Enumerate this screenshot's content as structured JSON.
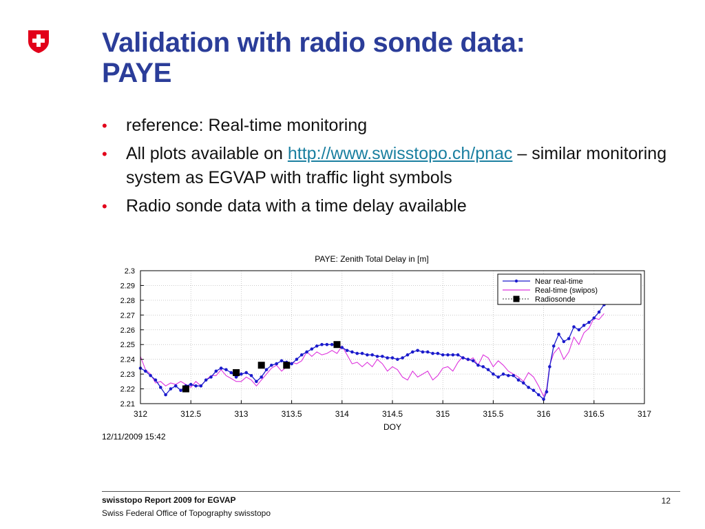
{
  "slide": {
    "title_line1": "Validation with radio sonde data:",
    "title_line2": "PAYE",
    "bullets": {
      "b1": "reference: Real-time monitoring",
      "b2_pre": "All plots available on ",
      "b2_link": "http://www.swisstopo.ch/pnac",
      "b2_post": " – similar monitoring system as EGVAP with traffic light symbols",
      "b3": "Radio sonde data with a time delay available"
    },
    "bullet_glyph": "•",
    "footer": {
      "report": "swisstopo Report 2009 for EGVAP",
      "org": "Swiss Federal Office of Topography swisstopo",
      "page": "12"
    },
    "logo_icon": "swiss-cross-shield"
  },
  "colors": {
    "title": "#2b3d99",
    "bullet": "#e2001a",
    "link": "#1a7fa0",
    "near_real_time": "#1a1acc",
    "real_time": "#dd33dd",
    "radiosonde": "#000000"
  },
  "chart_data": {
    "type": "line",
    "title": "PAYE: Zenith Total Delay in [m]",
    "xlabel": "DOY",
    "ylabel": "",
    "timestamp": "12/11/2009 15:42",
    "xlim": [
      312,
      317
    ],
    "ylim": [
      2.21,
      2.3
    ],
    "xticks": [
      312,
      312.5,
      313,
      313.5,
      314,
      314.5,
      315,
      315.5,
      316,
      316.5,
      317
    ],
    "yticks": [
      2.21,
      2.22,
      2.23,
      2.24,
      2.25,
      2.26,
      2.27,
      2.28,
      2.29,
      2.3
    ],
    "xtick_labels": [
      "312",
      "312.5",
      "313",
      "313.5",
      "314",
      "314.5",
      "315",
      "315.5",
      "316",
      "316.5",
      "317"
    ],
    "ytick_labels": [
      "2.21",
      "2.22",
      "2.23",
      "2.24",
      "2.25",
      "2.26",
      "2.27",
      "2.28",
      "2.29",
      "2.3"
    ],
    "grid": true,
    "legend_position": "top-right",
    "series": [
      {
        "name": "Near real-time",
        "style": "line-dot",
        "x": [
          312.0,
          312.05,
          312.1,
          312.15,
          312.2,
          312.25,
          312.3,
          312.35,
          312.4,
          312.45,
          312.5,
          312.55,
          312.6,
          312.65,
          312.7,
          312.75,
          312.8,
          312.85,
          312.9,
          312.95,
          313.0,
          313.05,
          313.1,
          313.15,
          313.2,
          313.25,
          313.3,
          313.35,
          313.4,
          313.45,
          313.5,
          313.55,
          313.6,
          313.65,
          313.7,
          313.75,
          313.8,
          313.85,
          313.9,
          313.95,
          314.0,
          314.05,
          314.1,
          314.15,
          314.2,
          314.25,
          314.3,
          314.35,
          314.4,
          314.45,
          314.5,
          314.55,
          314.6,
          314.65,
          314.7,
          314.75,
          314.8,
          314.85,
          314.9,
          314.95,
          315.0,
          315.05,
          315.1,
          315.15,
          315.2,
          315.25,
          315.3,
          315.35,
          315.4,
          315.45,
          315.5,
          315.55,
          315.6,
          315.65,
          315.7,
          315.75,
          315.8,
          315.85,
          315.9,
          315.95,
          316.0,
          316.03,
          316.06,
          316.1,
          316.15,
          316.2,
          316.25,
          316.3,
          316.35,
          316.4,
          316.45,
          316.5,
          316.55,
          316.6
        ],
        "y": [
          2.234,
          2.232,
          2.229,
          2.226,
          2.221,
          2.216,
          2.22,
          2.222,
          2.219,
          2.222,
          2.223,
          2.222,
          2.222,
          2.226,
          2.228,
          2.232,
          2.234,
          2.233,
          2.231,
          2.228,
          2.23,
          2.231,
          2.229,
          2.225,
          2.228,
          2.233,
          2.236,
          2.237,
          2.239,
          2.238,
          2.237,
          2.24,
          2.243,
          2.245,
          2.247,
          2.249,
          2.25,
          2.25,
          2.25,
          2.249,
          2.248,
          2.246,
          2.245,
          2.244,
          2.244,
          2.243,
          2.243,
          2.242,
          2.242,
          2.241,
          2.241,
          2.24,
          2.241,
          2.243,
          2.245,
          2.246,
          2.245,
          2.245,
          2.244,
          2.244,
          2.243,
          2.243,
          2.243,
          2.243,
          2.241,
          2.24,
          2.239,
          2.236,
          2.235,
          2.233,
          2.23,
          2.228,
          2.23,
          2.229,
          2.229,
          2.226,
          2.224,
          2.221,
          2.219,
          2.216,
          2.213,
          2.218,
          2.235,
          2.249,
          2.257,
          2.252,
          2.254,
          2.262,
          2.26,
          2.263,
          2.265,
          2.268,
          2.272,
          2.277
        ]
      },
      {
        "name": "Real-time (swipos)",
        "style": "line",
        "x": [
          312.0,
          312.05,
          312.1,
          312.15,
          312.2,
          312.25,
          312.3,
          312.35,
          312.4,
          312.45,
          312.5,
          312.55,
          312.6,
          312.65,
          312.7,
          312.75,
          312.8,
          312.85,
          312.9,
          312.95,
          313.0,
          313.05,
          313.1,
          313.15,
          313.2,
          313.25,
          313.3,
          313.35,
          313.4,
          313.45,
          313.5,
          313.55,
          313.6,
          313.65,
          313.7,
          313.75,
          313.8,
          313.85,
          313.9,
          313.95,
          314.0,
          314.05,
          314.1,
          314.15,
          314.2,
          314.25,
          314.3,
          314.35,
          314.4,
          314.45,
          314.5,
          314.55,
          314.6,
          314.65,
          314.7,
          314.75,
          314.8,
          314.85,
          314.9,
          314.95,
          315.0,
          315.05,
          315.1,
          315.15,
          315.2,
          315.25,
          315.3,
          315.35,
          315.4,
          315.45,
          315.5,
          315.55,
          315.6,
          315.65,
          315.7,
          315.75,
          315.8,
          315.85,
          315.9,
          315.95,
          316.0,
          316.03,
          316.06,
          316.1,
          316.15,
          316.2,
          316.25,
          316.3,
          316.35,
          316.4,
          316.45,
          316.5,
          316.55,
          316.6
        ],
        "y": [
          2.242,
          2.233,
          2.23,
          2.224,
          2.225,
          2.222,
          2.224,
          2.223,
          2.225,
          2.223,
          2.221,
          2.225,
          2.222,
          2.226,
          2.229,
          2.229,
          2.233,
          2.229,
          2.227,
          2.225,
          2.225,
          2.228,
          2.226,
          2.222,
          2.226,
          2.23,
          2.234,
          2.236,
          2.232,
          2.235,
          2.238,
          2.237,
          2.239,
          2.245,
          2.242,
          2.245,
          2.243,
          2.244,
          2.246,
          2.244,
          2.249,
          2.243,
          2.237,
          2.238,
          2.235,
          2.238,
          2.235,
          2.24,
          2.237,
          2.232,
          2.235,
          2.233,
          2.228,
          2.226,
          2.232,
          2.228,
          2.23,
          2.232,
          2.226,
          2.229,
          2.234,
          2.235,
          2.232,
          2.238,
          2.242,
          2.239,
          2.241,
          2.236,
          2.243,
          2.241,
          2.235,
          2.239,
          2.236,
          2.232,
          2.23,
          2.228,
          2.225,
          2.231,
          2.228,
          2.222,
          2.215,
          2.22,
          2.236,
          2.244,
          2.248,
          2.24,
          2.245,
          2.255,
          2.25,
          2.258,
          2.261,
          2.268,
          2.267,
          2.271
        ]
      },
      {
        "name": "Radiosonde",
        "style": "marker",
        "x": [
          312.45,
          312.95,
          313.2,
          313.45,
          313.95
        ],
        "y": [
          2.22,
          2.231,
          2.236,
          2.236,
          2.25
        ]
      }
    ]
  }
}
